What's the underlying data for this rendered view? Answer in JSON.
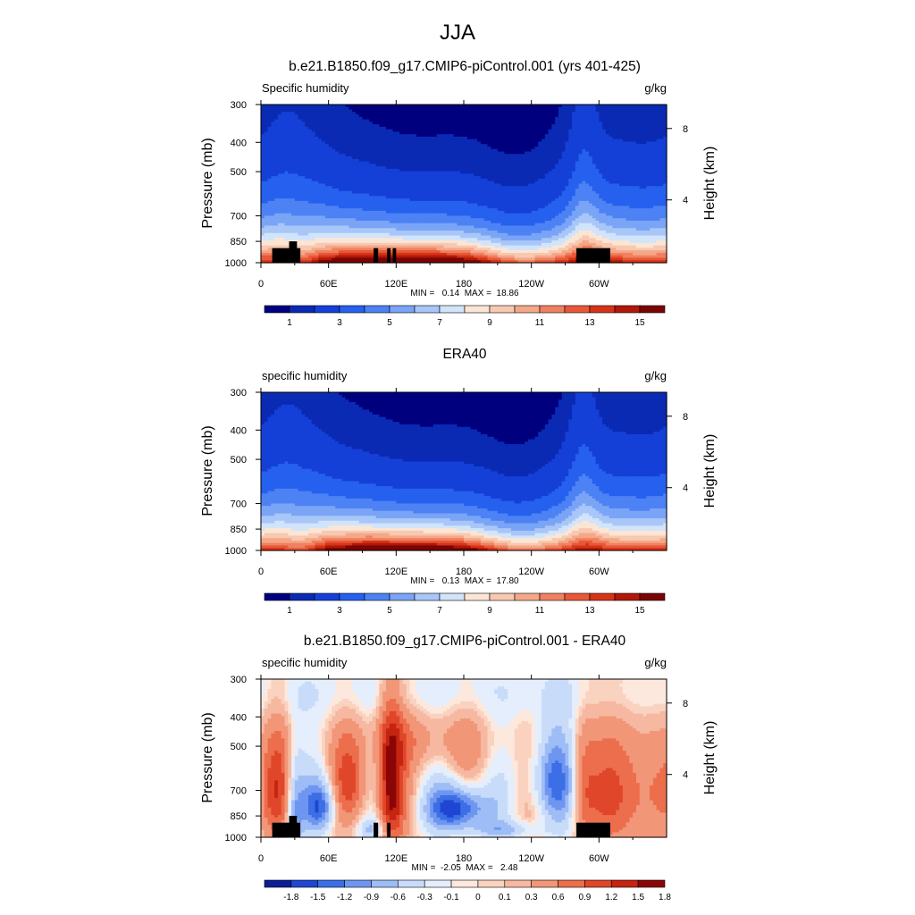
{
  "page": {
    "title": "JJA",
    "background": "#ffffff"
  },
  "palettes": {
    "absolute": [
      "#00007f",
      "#0a2ab4",
      "#1440d8",
      "#2660ee",
      "#4c82f4",
      "#7aa4f6",
      "#a8c6f8",
      "#d2e4fa",
      "#fbe6d6",
      "#f8c8b0",
      "#f4a888",
      "#f08060",
      "#e85838",
      "#d63418",
      "#b01808",
      "#7a0404"
    ],
    "difference": [
      "#0a1e96",
      "#1e46d2",
      "#3c6ee6",
      "#6e96f0",
      "#9ebcf6",
      "#c8dcfa",
      "#e4eefc",
      "#fde8de",
      "#fad2c0",
      "#f6b8a0",
      "#f29678",
      "#ec6e4c",
      "#e0462a",
      "#c42410",
      "#8a0606"
    ]
  },
  "chart_data": [
    {
      "type": "heatmap",
      "title": "b.e21.B1850.f09_g17.CMIP6-piControl.001 (yrs 401-425)",
      "left_label": "Specific humidity",
      "right_label": "g/kg",
      "ylabel": "Pressure (mb)",
      "ylabel_right": "Height (km)",
      "x_ticks": [
        "0",
        "60E",
        "120E",
        "180",
        "120W",
        "60W"
      ],
      "y_ticks": [
        "300",
        "400",
        "500",
        "700",
        "850",
        "1000"
      ],
      "y_right_ticks": [
        "8",
        "4"
      ],
      "stats": "MIN =   0.14  MAX =  18.86",
      "palette": "absolute",
      "colorbar_labels": [
        "1",
        "3",
        "5",
        "7",
        "9",
        "11",
        "13",
        "15"
      ],
      "levels": [
        0.5,
        1,
        2,
        3,
        4,
        5,
        6,
        7,
        8,
        9,
        10,
        11,
        12,
        13,
        14,
        15
      ],
      "xlim": [
        0,
        360
      ],
      "ylim": [
        1000,
        300
      ],
      "field": "absolute_model",
      "topography": [
        [
          10,
          35,
          895
        ],
        [
          25,
          32,
          850
        ],
        [
          100,
          104,
          895
        ],
        [
          112,
          115,
          895
        ],
        [
          117,
          120,
          895
        ],
        [
          280,
          310,
          895
        ]
      ]
    },
    {
      "type": "heatmap",
      "title": "ERA40",
      "left_label": "specific humidity",
      "right_label": "g/kg",
      "ylabel": "Pressure (mb)",
      "ylabel_right": "Height (km)",
      "x_ticks": [
        "0",
        "60E",
        "120E",
        "180",
        "120W",
        "60W"
      ],
      "y_ticks": [
        "300",
        "400",
        "500",
        "700",
        "850",
        "1000"
      ],
      "y_right_ticks": [
        "8",
        "4"
      ],
      "stats": "MIN =   0.13  MAX =  17.80",
      "palette": "absolute",
      "colorbar_labels": [
        "1",
        "3",
        "5",
        "7",
        "9",
        "11",
        "13",
        "15"
      ],
      "levels": [
        0.5,
        1,
        2,
        3,
        4,
        5,
        6,
        7,
        8,
        9,
        10,
        11,
        12,
        13,
        14,
        15
      ],
      "xlim": [
        0,
        360
      ],
      "ylim": [
        1000,
        300
      ],
      "field": "absolute_obs",
      "topography": []
    },
    {
      "type": "heatmap",
      "title": "b.e21.B1850.f09_g17.CMIP6-piControl.001 - ERA40",
      "left_label": "specific humidity",
      "right_label": "g/kg",
      "ylabel": "Pressure (mb)",
      "ylabel_right": "Height (km)",
      "x_ticks": [
        "0",
        "60E",
        "120E",
        "180",
        "120W",
        "60W"
      ],
      "y_ticks": [
        "300",
        "400",
        "500",
        "700",
        "850",
        "1000"
      ],
      "y_right_ticks": [
        "8",
        "4"
      ],
      "stats": "MIN =  -2.05  MAX =   2.48",
      "palette": "difference",
      "colorbar_labels": [
        "-1.8",
        "-1.5",
        "-1.2",
        "-0.9",
        "-0.6",
        "-0.3",
        "-0.1",
        "0",
        "0.1",
        "0.3",
        "0.6",
        "0.9",
        "1.2",
        "1.5",
        "1.8"
      ],
      "levels": [
        -1.8,
        -1.5,
        -1.2,
        -0.9,
        -0.6,
        -0.3,
        -0.1,
        0,
        0.1,
        0.3,
        0.6,
        0.9,
        1.2,
        1.5,
        1.8
      ],
      "xlim": [
        0,
        360
      ],
      "ylim": [
        1000,
        300
      ],
      "field": "difference",
      "topography": [
        [
          10,
          35,
          895
        ],
        [
          25,
          32,
          850
        ],
        [
          100,
          104,
          895
        ],
        [
          112,
          115,
          895
        ],
        [
          280,
          310,
          895
        ]
      ]
    }
  ]
}
